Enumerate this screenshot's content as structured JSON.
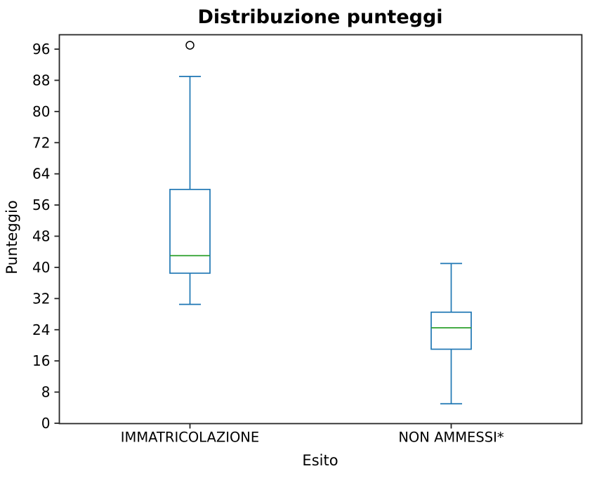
{
  "figure": {
    "title": "Distribuzione punteggi",
    "xlabel": "Esito",
    "ylabel": "Punteggio"
  },
  "chart_data": {
    "type": "boxplot",
    "title": "Distribuzione punteggi",
    "xlabel": "Esito",
    "ylabel": "Punteggio",
    "categories": [
      "IMMATRICOLAZIONE",
      "NON AMMESSI*"
    ],
    "series": [
      {
        "name": "IMMATRICOLAZIONE",
        "whisker_low": 30.5,
        "q1": 38.5,
        "median": 43,
        "q3": 60,
        "whisker_high": 89,
        "outliers": [
          97
        ]
      },
      {
        "name": "NON AMMESSI*",
        "whisker_low": 5,
        "q1": 19,
        "median": 24.5,
        "q3": 28.5,
        "whisker_high": 41,
        "outliers": []
      }
    ],
    "yticks": [
      0,
      8,
      16,
      24,
      32,
      40,
      48,
      56,
      64,
      72,
      80,
      88,
      96
    ],
    "ylim": [
      0,
      100
    ],
    "grid": false,
    "legend": null,
    "colors": {
      "box": "#1f77b4",
      "median": "#2ca02c",
      "outlier": "#000000",
      "axis": "#262626"
    }
  }
}
